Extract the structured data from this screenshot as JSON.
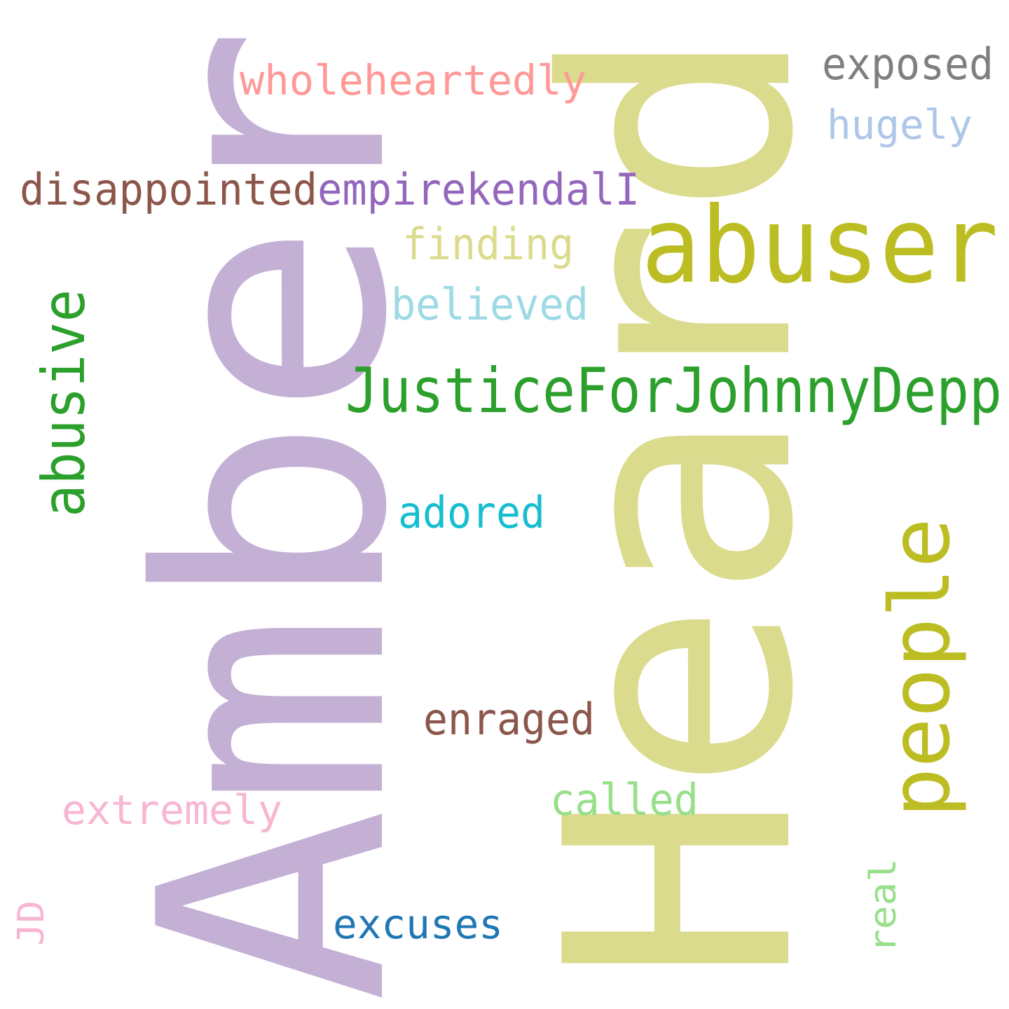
{
  "word_cloud": {
    "words": [
      {
        "text": "Amber",
        "color": "#c5b0d5"
      },
      {
        "text": "Heard",
        "color": "#dbdb8d"
      },
      {
        "text": "abuser",
        "color": "#bcbd22"
      },
      {
        "text": "JusticeForJohnnyDepp",
        "color": "#2ca02c"
      },
      {
        "text": "people",
        "color": "#bcbd22"
      },
      {
        "text": "abusive",
        "color": "#2ca02c"
      },
      {
        "text": "wholeheartedly",
        "color": "#ff9896"
      },
      {
        "text": "disappointed",
        "color": "#8c564b"
      },
      {
        "text": "empirekendalI",
        "color": "#9467bd"
      },
      {
        "text": "exposed",
        "color": "#7f7f7f"
      },
      {
        "text": "hugely",
        "color": "#aec7e8"
      },
      {
        "text": "finding",
        "color": "#dbdb8d"
      },
      {
        "text": "believed",
        "color": "#9edae5"
      },
      {
        "text": "adored",
        "color": "#17becf"
      },
      {
        "text": "enraged",
        "color": "#8c564b"
      },
      {
        "text": "called",
        "color": "#98df8a"
      },
      {
        "text": "extremely",
        "color": "#f7b6d2"
      },
      {
        "text": "excuses",
        "color": "#1f77b4"
      },
      {
        "text": "real",
        "color": "#98df8a"
      },
      {
        "text": "JD",
        "color": "#f7b6d2"
      }
    ]
  }
}
